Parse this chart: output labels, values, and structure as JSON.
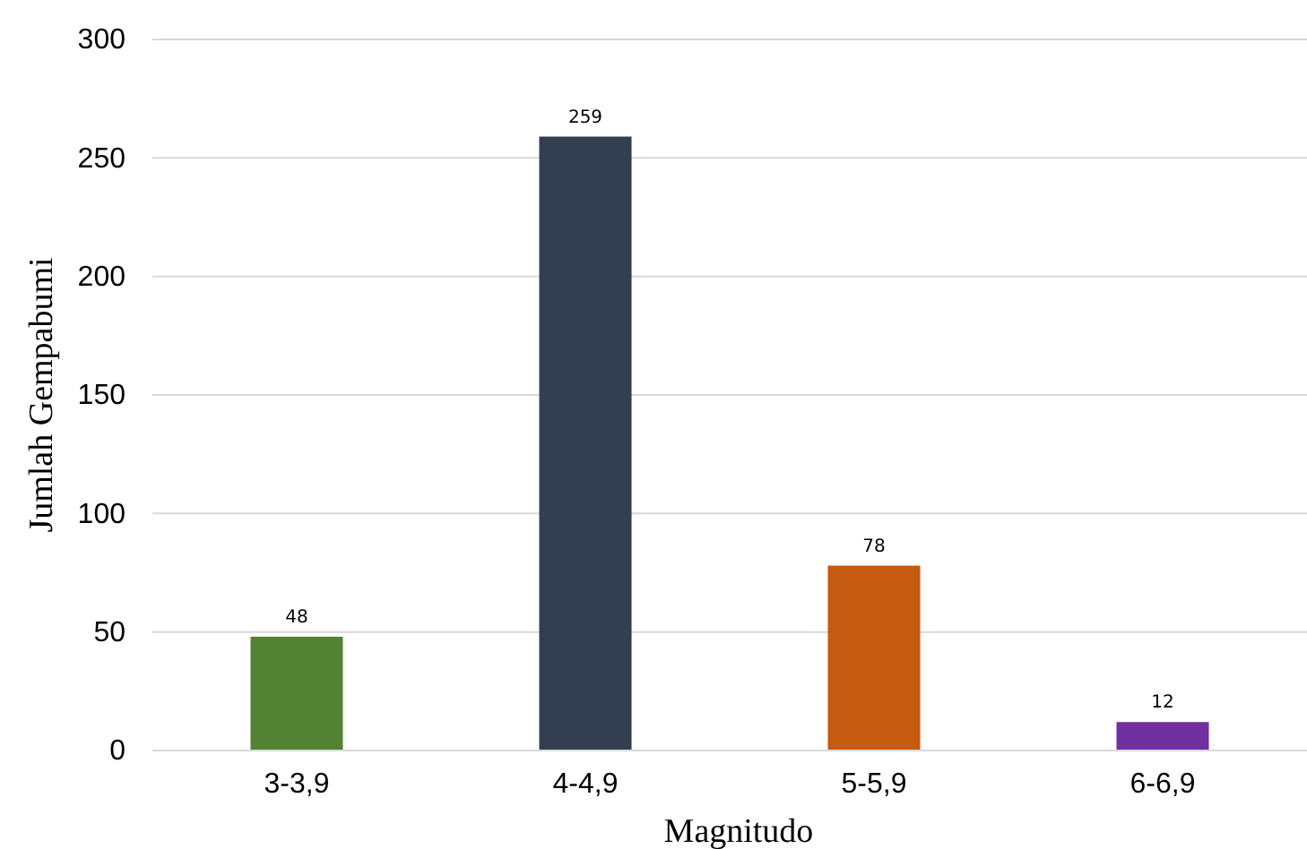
{
  "chart_data": {
    "type": "bar",
    "xlabel": "Magnitudo",
    "ylabel": "Jumlah Gempabumi",
    "categories": [
      "3-3,9",
      "4-4,9",
      "5-5,9",
      "6-6,9"
    ],
    "values": [
      48,
      259,
      78,
      12
    ],
    "colors": [
      "#548235",
      "#333f50",
      "#c55a11",
      "#7030a0"
    ],
    "ylim": [
      0,
      300
    ],
    "yticks": [
      0,
      50,
      100,
      150,
      200,
      250,
      300
    ],
    "grid": "y",
    "data_labels": true
  }
}
